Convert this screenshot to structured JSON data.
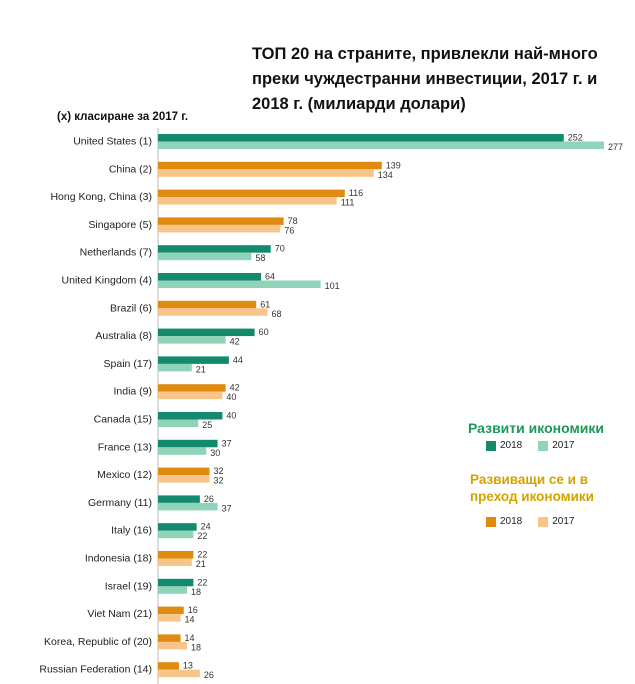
{
  "chart_data": {
    "type": "bar",
    "orientation": "horizontal",
    "title": "ТОП 20 на страните, привлекли най-много преки чуждестранни инвестиции, 2017 г. и 2018 г. (милиарди долари)",
    "subtitle": "(x) класиране за 2017 г.",
    "categories": [
      {
        "label": "United States (1)",
        "group": "developed",
        "v2018": 252,
        "v2017": 277
      },
      {
        "label": "China (2)",
        "group": "developing",
        "v2018": 139,
        "v2017": 134
      },
      {
        "label": "Hong Kong, China (3)",
        "group": "developing",
        "v2018": 116,
        "v2017": 111
      },
      {
        "label": "Singapore (5)",
        "group": "developing",
        "v2018": 78,
        "v2017": 76
      },
      {
        "label": "Netherlands (7)",
        "group": "developed",
        "v2018": 70,
        "v2017": 58
      },
      {
        "label": "United Kingdom (4)",
        "group": "developed",
        "v2018": 64,
        "v2017": 101
      },
      {
        "label": "Brazil (6)",
        "group": "developing",
        "v2018": 61,
        "v2017": 68
      },
      {
        "label": "Australia (8)",
        "group": "developed",
        "v2018": 60,
        "v2017": 42
      },
      {
        "label": "Spain (17)",
        "group": "developed",
        "v2018": 44,
        "v2017": 21
      },
      {
        "label": "India (9)",
        "group": "developing",
        "v2018": 42,
        "v2017": 40
      },
      {
        "label": "Canada (15)",
        "group": "developed",
        "v2018": 40,
        "v2017": 25
      },
      {
        "label": "France (13)",
        "group": "developed",
        "v2018": 37,
        "v2017": 30
      },
      {
        "label": "Mexico (12)",
        "group": "developing",
        "v2018": 32,
        "v2017": 32
      },
      {
        "label": "Germany (11)",
        "group": "developed",
        "v2018": 26,
        "v2017": 37
      },
      {
        "label": "Italy (16)",
        "group": "developed",
        "v2018": 24,
        "v2017": 22
      },
      {
        "label": "Indonesia (18)",
        "group": "developing",
        "v2018": 22,
        "v2017": 21
      },
      {
        "label": "Israel (19)",
        "group": "developed",
        "v2018": 22,
        "v2017": 18
      },
      {
        "label": "Viet Nam (21)",
        "group": "developing",
        "v2018": 16,
        "v2017": 14
      },
      {
        "label": "Korea, Republic of (20)",
        "group": "developing",
        "v2018": 14,
        "v2017": 18
      },
      {
        "label": "Russian Federation (14)",
        "group": "developing",
        "v2018": 13,
        "v2017": 26
      }
    ],
    "xlim": [
      0,
      277
    ],
    "grid": false,
    "legend": {
      "placement": "right",
      "developed": {
        "title": "Развити икономики",
        "label_2018": "2018",
        "label_2017": "2017"
      },
      "developing": {
        "title": "Развиващи се и в преход икономики",
        "label_2018": "2018",
        "label_2017": "2017"
      }
    },
    "colors": {
      "developed_2018": "#138a6d",
      "developed_2017": "#8fd3b8",
      "developing_2018": "#e08a10",
      "developing_2017": "#f7c58a",
      "developed_title": "#1a9a55",
      "developing_title": "#d6a100"
    }
  }
}
